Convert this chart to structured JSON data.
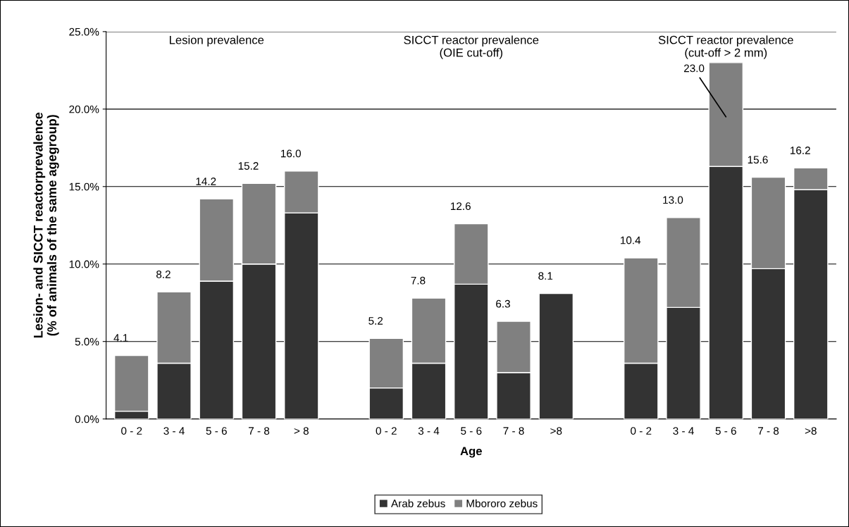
{
  "chart_data": {
    "type": "bar",
    "stacked": true,
    "xlabel": "Age",
    "ylabel": "Lesion- and SICCT reactorprevalence\n(% of animals of the same agegroup)",
    "categories": [
      "0 - 2",
      "3 - 4",
      "5 - 6",
      "7 - 8",
      "> 8",
      null,
      "0 - 2",
      "3 - 4",
      "5 - 6",
      "7 - 8",
      ">8",
      null,
      "0 - 2",
      "3 - 4",
      "5 - 6",
      "7 - 8",
      ">8"
    ],
    "series": [
      {
        "name": "Arab zebus",
        "color": "#333333",
        "values": [
          0.5,
          3.6,
          8.9,
          10.0,
          13.3,
          null,
          2.0,
          3.6,
          8.7,
          3.0,
          8.1,
          null,
          3.6,
          7.2,
          16.3,
          9.7,
          14.8
        ]
      },
      {
        "name": "Mbororo zebus",
        "color": "#808080",
        "values": [
          3.6,
          4.6,
          5.3,
          5.2,
          2.7,
          null,
          3.2,
          4.2,
          3.9,
          3.3,
          null,
          null,
          6.8,
          5.8,
          6.7,
          5.9,
          1.4
        ]
      }
    ],
    "totals": [
      "4.1",
      "8.2",
      "14.2",
      "15.2",
      "16.0",
      null,
      "5.2",
      "7.8",
      "12.6",
      "6.3",
      "8.1",
      null,
      "10.4",
      "13.0",
      "23.0",
      "15.6",
      "16.2"
    ],
    "annotations": [
      "Lesion prevalence",
      "SICCT reactor prevalence\n(OIE cut-off)",
      "SICCT reactor prevalence\n(cut-off > 2 mm)"
    ],
    "ylim": [
      0,
      25
    ],
    "yticks": [
      {
        "value": 0,
        "label": "0.0%"
      },
      {
        "value": 5,
        "label": "5.0%"
      },
      {
        "value": 10,
        "label": "10.0%"
      },
      {
        "value": 15,
        "label": "15.0%"
      },
      {
        "value": 20,
        "label": "20.0%"
      },
      {
        "value": 25,
        "label": "25.0%"
      }
    ],
    "grid": "y",
    "legend": "bottom"
  }
}
